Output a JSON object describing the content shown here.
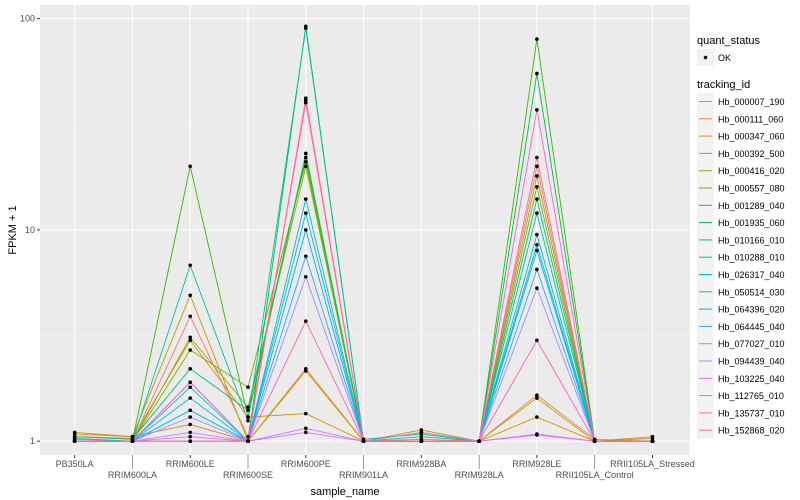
{
  "chart_data": {
    "type": "line",
    "title": "",
    "xlabel": "sample_name",
    "ylabel": "FPKM + 1",
    "y_scale": "log10",
    "ylim": [
      0.86,
      116
    ],
    "y_ticks": [
      1,
      10,
      100
    ],
    "y_tick_labels": [
      "1",
      "10",
      "100"
    ],
    "grid": true,
    "legend_position": "right",
    "categories": [
      "PB350LA",
      "RRIM600LA",
      "RRIM600LE",
      "RRIM600SE",
      "RRIM600PE",
      "RRIM901LA",
      "RRIM928BA",
      "RRIM928LA",
      "RRIM928LE",
      "RRII105LA_Control",
      "RRII105LA_Stressed"
    ],
    "point_legend": {
      "title": "quant_status",
      "items": [
        "OK"
      ]
    },
    "line_legend_title": "tracking_id",
    "series": [
      {
        "name": "Hb_000007_190",
        "color": "#F8766D",
        "values": [
          1.02,
          1.0,
          3.9,
          1.05,
          40,
          1.0,
          1.0,
          1.0,
          20,
          1.0,
          1.0
        ]
      },
      {
        "name": "Hb_000111_060",
        "color": "#EA8331",
        "values": [
          1.08,
          1.05,
          1.2,
          1.0,
          2.2,
          1.0,
          1.02,
          1.0,
          1.65,
          1.02,
          1.0
        ]
      },
      {
        "name": "Hb_000347_060",
        "color": "#D89000",
        "values": [
          1.05,
          1.03,
          3.0,
          1.3,
          1.35,
          1.0,
          1.1,
          1.0,
          1.3,
          1.0,
          1.05
        ]
      },
      {
        "name": "Hb_000392_500",
        "color": "#C09B00",
        "values": [
          1.1,
          1.05,
          4.9,
          1.0,
          2.15,
          1.0,
          1.13,
          1.0,
          1.6,
          1.0,
          1.0
        ]
      },
      {
        "name": "Hb_000416_020",
        "color": "#A3A500",
        "values": [
          1.0,
          1.0,
          3.1,
          1.45,
          20,
          1.0,
          1.0,
          1.0,
          18,
          1.0,
          1.03
        ]
      },
      {
        "name": "Hb_000557_080",
        "color": "#7CAE00",
        "values": [
          1.0,
          1.0,
          2.7,
          1.8,
          21,
          1.0,
          1.0,
          1.0,
          16,
          1.0,
          1.0
        ]
      },
      {
        "name": "Hb_001289_040",
        "color": "#39B600",
        "values": [
          1.0,
          1.0,
          20,
          1.3,
          23,
          1.0,
          1.0,
          1.0,
          80,
          1.0,
          1.0
        ]
      },
      {
        "name": "Hb_001935_060",
        "color": "#00BB4E",
        "values": [
          1.0,
          1.0,
          1.0,
          1.0,
          92,
          1.0,
          1.0,
          1.0,
          55,
          1.0,
          1.0
        ]
      },
      {
        "name": "Hb_010166_010",
        "color": "#00BF7D",
        "values": [
          1.05,
          1.02,
          2.2,
          1.4,
          22,
          1.02,
          1.08,
          1.0,
          14,
          1.0,
          1.0
        ]
      },
      {
        "name": "Hb_010288_010",
        "color": "#00C1A3",
        "values": [
          1.03,
          1.0,
          6.8,
          1.25,
          90,
          1.0,
          1.05,
          1.0,
          12,
          1.0,
          1.0
        ]
      },
      {
        "name": "Hb_026317_040",
        "color": "#00BFC4",
        "values": [
          1.0,
          1.0,
          1.8,
          1.0,
          14,
          1.0,
          1.0,
          1.0,
          9.5,
          1.0,
          1.0
        ]
      },
      {
        "name": "Hb_050514_030",
        "color": "#00BAE0",
        "values": [
          1.0,
          1.0,
          1.6,
          1.0,
          12,
          1.0,
          1.0,
          1.0,
          8.5,
          1.0,
          1.0
        ]
      },
      {
        "name": "Hb_064396_020",
        "color": "#00B0F6",
        "values": [
          1.0,
          1.0,
          1.4,
          1.0,
          10,
          1.0,
          1.0,
          1.0,
          8,
          1.0,
          1.0
        ]
      },
      {
        "name": "Hb_064445_040",
        "color": "#35A2FF",
        "values": [
          1.0,
          1.0,
          1.9,
          1.0,
          7.5,
          1.0,
          1.0,
          1.0,
          6.5,
          1.0,
          1.0
        ]
      },
      {
        "name": "Hb_077027_010",
        "color": "#9590FF",
        "values": [
          1.0,
          1.0,
          1.3,
          1.0,
          6,
          1.0,
          1.0,
          1.0,
          5.3,
          1.0,
          1.0
        ]
      },
      {
        "name": "Hb_094439_040",
        "color": "#C77CFF",
        "values": [
          1.0,
          1.0,
          1.1,
          1.0,
          1.15,
          1.0,
          1.1,
          1.0,
          1.08,
          1.0,
          1.0
        ]
      },
      {
        "name": "Hb_103225_040",
        "color": "#E76BF3",
        "values": [
          1.0,
          1.0,
          1.05,
          1.0,
          1.1,
          1.0,
          1.0,
          1.0,
          1.07,
          1.0,
          1.0
        ]
      },
      {
        "name": "Hb_112765_010",
        "color": "#FA62DB",
        "values": [
          1.0,
          1.0,
          1.9,
          1.0,
          42,
          1.0,
          1.0,
          1.0,
          37,
          1.0,
          1.0
        ]
      },
      {
        "name": "Hb_135737_010",
        "color": "#FF62BC",
        "values": [
          1.0,
          1.0,
          1.0,
          1.0,
          3.7,
          1.0,
          1.0,
          1.0,
          3.0,
          1.0,
          1.0
        ]
      },
      {
        "name": "Hb_152868_020",
        "color": "#FF6C91",
        "values": [
          1.0,
          1.0,
          1.0,
          1.0,
          41,
          1.0,
          1.0,
          1.0,
          22,
          1.0,
          1.0
        ]
      }
    ]
  }
}
